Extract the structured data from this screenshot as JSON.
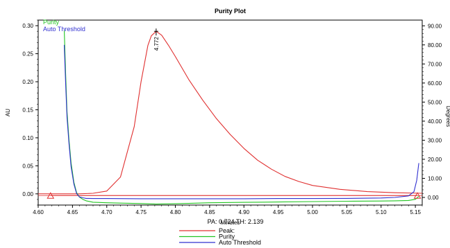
{
  "chart_data": {
    "type": "line",
    "title": "Purity Plot",
    "xlabel": "Minutes",
    "ylabel_left": "AU",
    "ylabel_right": "Degrees",
    "xlim": [
      4.6,
      5.16
    ],
    "ylim_left": [
      -0.02,
      0.31
    ],
    "ylim_right": [
      -4.0,
      93.0
    ],
    "x_ticks": [
      "4.60",
      "4.65",
      "4.70",
      "4.75",
      "4.80",
      "4.85",
      "4.90",
      "4.95",
      "5.00",
      "5.05",
      "5.10",
      "5.15"
    ],
    "y_left_ticks": [
      "0.00",
      "0.05",
      "0.10",
      "0.15",
      "0.20",
      "0.25",
      "0.30"
    ],
    "y_right_ticks": [
      "0.00",
      "10.00",
      "20.00",
      "30.00",
      "40.00",
      "50.00",
      "60.00",
      "70.00",
      "80.00",
      "90.00"
    ],
    "legend_top": [
      "Purity",
      "Auto Threshold"
    ],
    "legend_bottom": [
      "Peak:",
      "Purity",
      "Auto Threshold"
    ],
    "info_line": "PA:  0.724  TH:  2.139",
    "peak_label": "4.772",
    "peak_apex": {
      "x": 4.772,
      "y": 0.29
    },
    "markers": [
      {
        "x": 4.618,
        "y": -0.003
      },
      {
        "x": 5.153,
        "y": -0.003
      }
    ],
    "colors": {
      "peak": "#e03030",
      "purity": "#22c422",
      "threshold": "#3030d0",
      "marker": "#e03030"
    },
    "series": [
      {
        "name": "Peak:",
        "axis": "left",
        "x": [
          4.6,
          4.66,
          4.68,
          4.7,
          4.72,
          4.74,
          4.75,
          4.76,
          4.765,
          4.772,
          4.78,
          4.79,
          4.8,
          4.82,
          4.84,
          4.86,
          4.88,
          4.9,
          4.92,
          4.94,
          4.96,
          4.98,
          5.0,
          5.04,
          5.08,
          5.12,
          5.16
        ],
        "y": [
          0.0,
          0.0,
          0.001,
          0.005,
          0.03,
          0.12,
          0.2,
          0.265,
          0.282,
          0.29,
          0.283,
          0.265,
          0.245,
          0.203,
          0.167,
          0.134,
          0.106,
          0.081,
          0.06,
          0.044,
          0.031,
          0.022,
          0.015,
          0.008,
          0.004,
          0.002,
          0.001
        ]
      },
      {
        "name": "Purity",
        "axis": "right",
        "x": [
          4.638,
          4.64,
          4.642,
          4.645,
          4.648,
          4.652,
          4.656,
          4.66,
          4.665,
          4.67,
          4.68,
          4.7,
          4.72,
          4.75,
          4.772,
          4.8,
          4.85,
          4.9,
          4.95,
          5.0,
          5.05,
          5.1,
          5.12,
          5.14,
          5.15,
          5.155
        ],
        "y": [
          88.0,
          65.0,
          45.0,
          30.0,
          18.0,
          8.0,
          2.5,
          0.2,
          -1.0,
          -1.8,
          -2.5,
          -2.8,
          -3.0,
          -3.2,
          -3.5,
          -3.3,
          -2.8,
          -2.6,
          -2.4,
          -2.2,
          -2.0,
          -1.9,
          -1.8,
          -1.6,
          -1.0,
          0.5
        ]
      },
      {
        "name": "Auto Threshold",
        "axis": "right",
        "x": [
          4.638,
          4.64,
          4.642,
          4.645,
          4.648,
          4.652,
          4.656,
          4.66,
          4.665,
          4.67,
          4.68,
          4.7,
          4.75,
          4.8,
          4.85,
          4.9,
          4.95,
          5.0,
          5.05,
          5.1,
          5.12,
          5.14,
          5.148,
          5.152,
          5.155
        ],
        "y": [
          80.0,
          60.0,
          42.0,
          28.0,
          16.0,
          7.0,
          2.0,
          0.3,
          -0.2,
          -0.5,
          -0.6,
          -0.6,
          -0.7,
          -0.7,
          -0.7,
          -0.7,
          -0.6,
          -0.6,
          -0.5,
          -0.3,
          0.0,
          0.8,
          3.0,
          9.0,
          18.0
        ]
      }
    ]
  }
}
